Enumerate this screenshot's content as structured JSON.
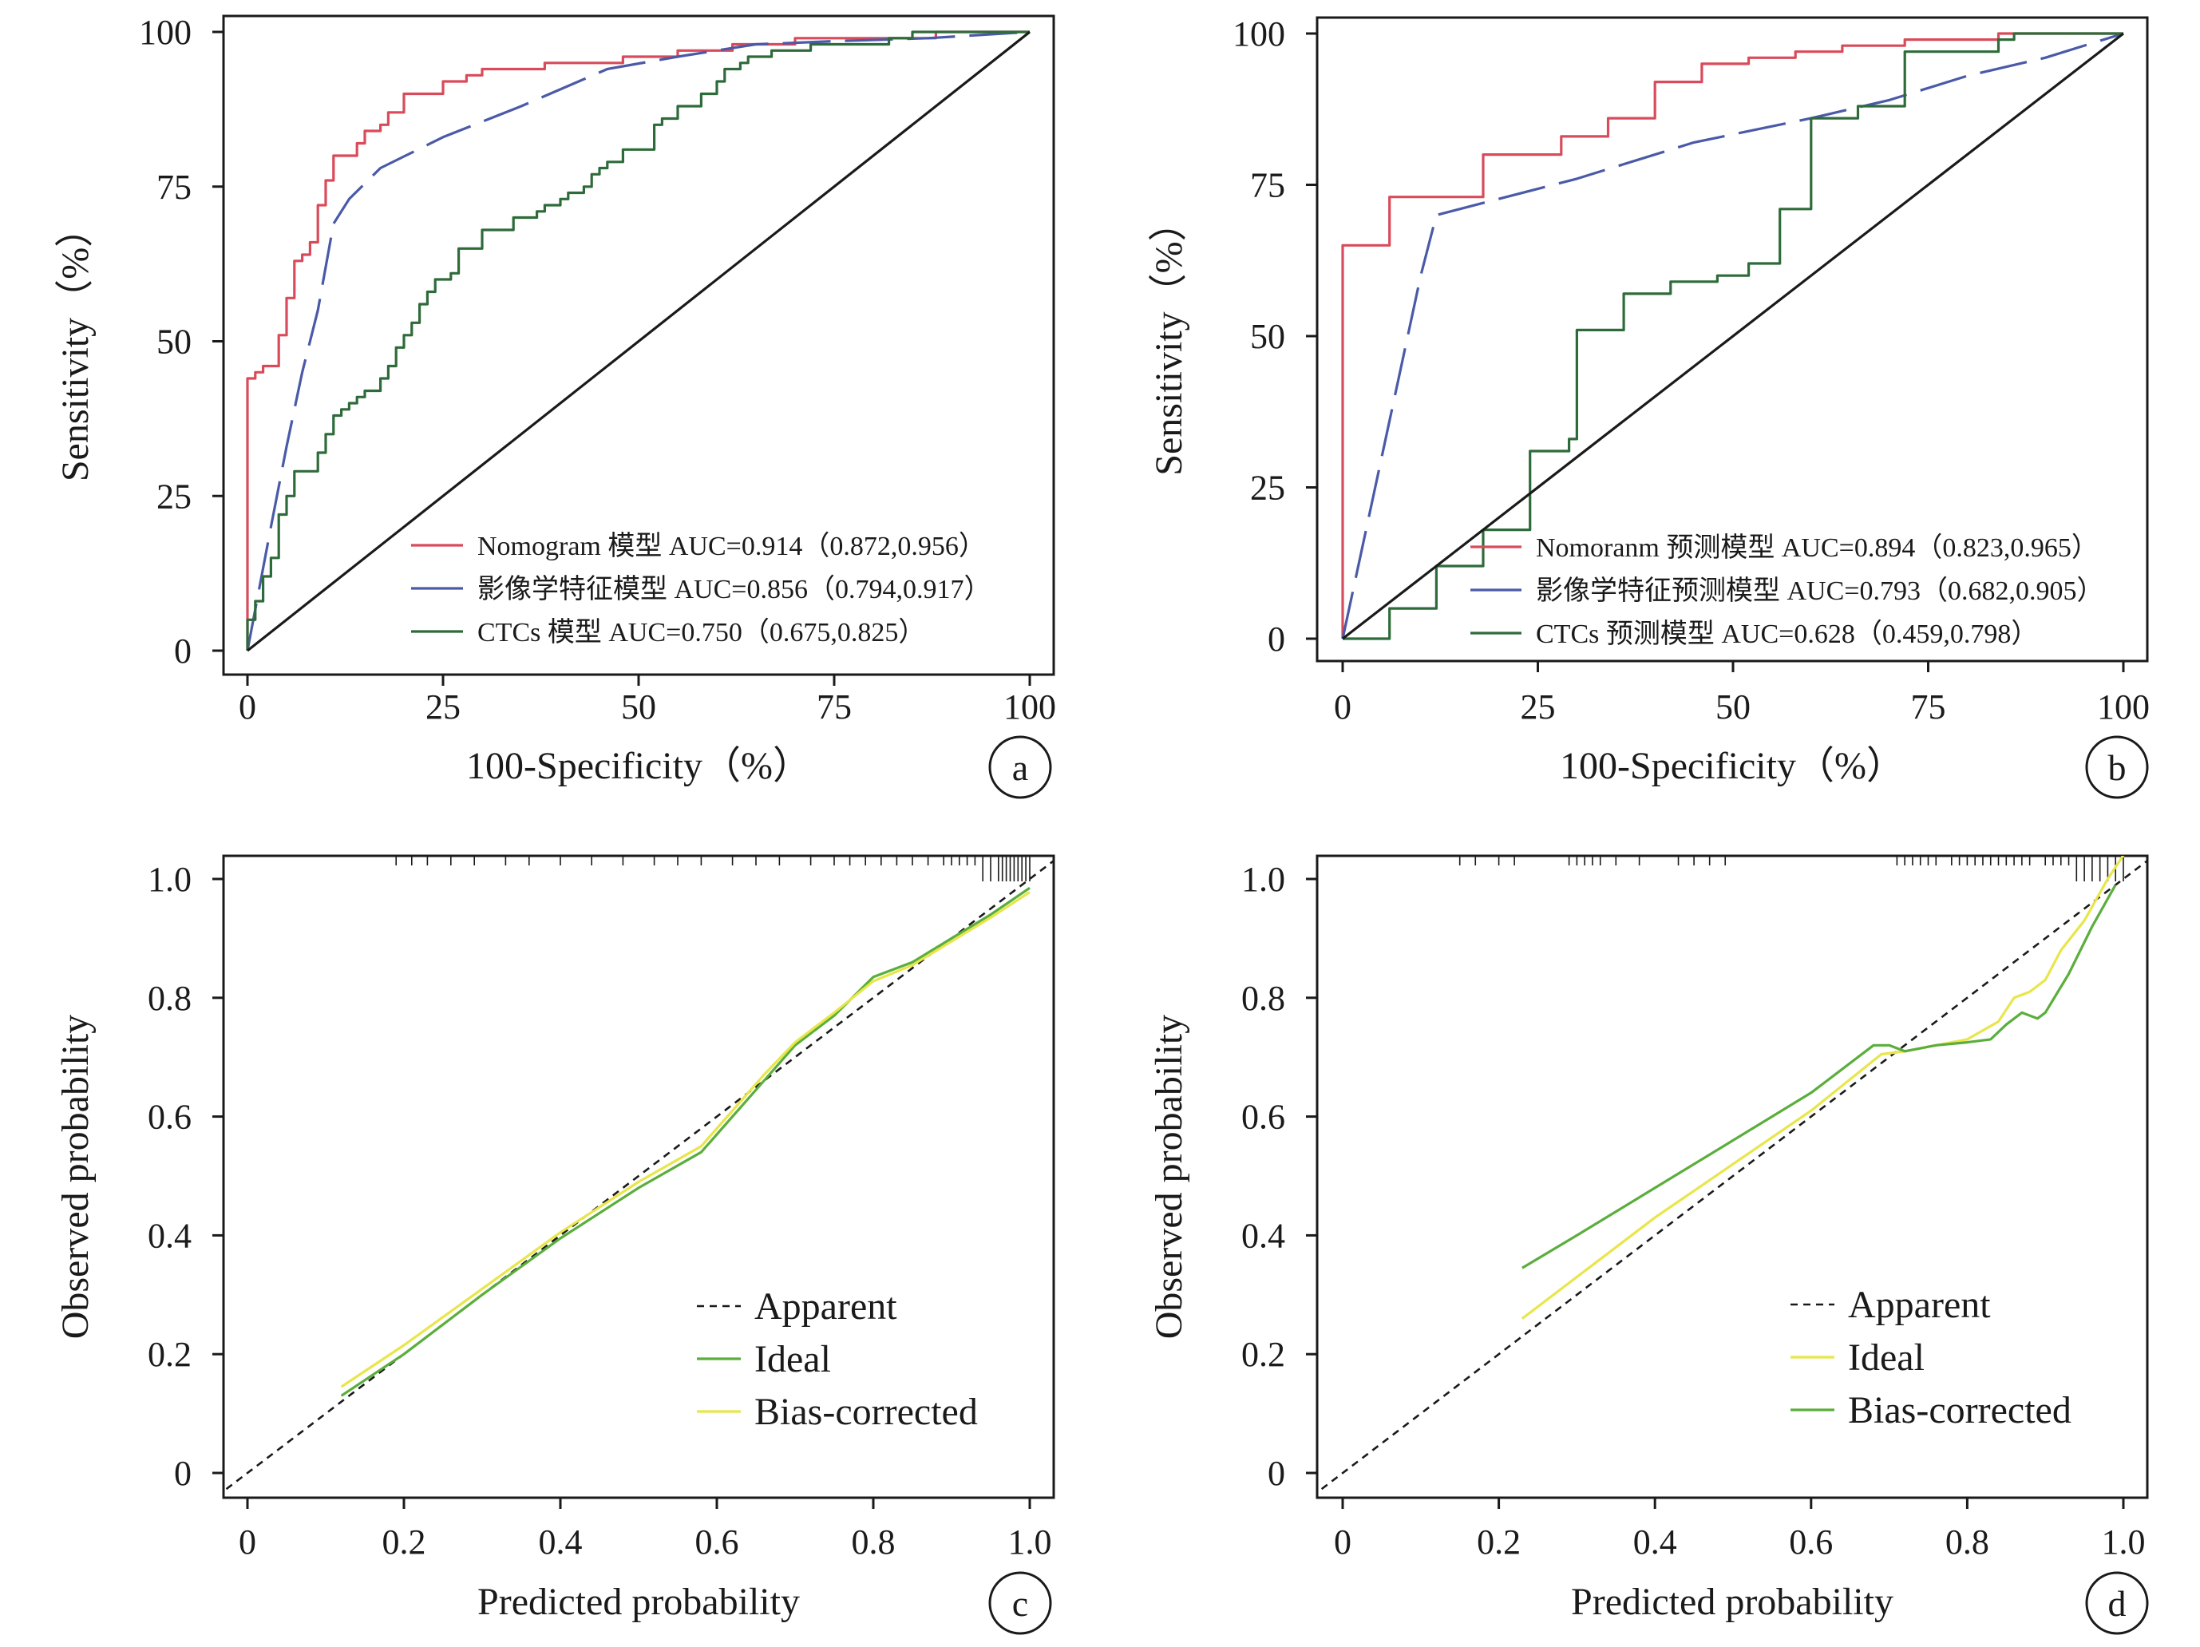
{
  "chart_data": [
    {
      "panel": "a",
      "type": "line",
      "xlabel": "100-Specificity（%）",
      "ylabel": "Sensitivity（%）",
      "xlim": [
        0,
        100
      ],
      "ylim": [
        0,
        100
      ],
      "xticks": [
        "0",
        "25",
        "50",
        "75",
        "100"
      ],
      "yticks": [
        "0",
        "25",
        "50",
        "75",
        "100"
      ],
      "legend_position": "bottom-right",
      "series": [
        {
          "name": "Nomogram 模型 AUC=0.914（0.872,0.956）",
          "color": "#d94b5a",
          "x": [
            0,
            0,
            1,
            1,
            2,
            2,
            4,
            4,
            5,
            5,
            6,
            6,
            7,
            7,
            8,
            8,
            9,
            9,
            10,
            10,
            11,
            11,
            13,
            13,
            14,
            14,
            15,
            15,
            17,
            17,
            18,
            18,
            20,
            20,
            23,
            23,
            25,
            25,
            28,
            28,
            30,
            30,
            33,
            33,
            38,
            38,
            44,
            44,
            48,
            48,
            55,
            55,
            62,
            62,
            70,
            70,
            80,
            80,
            88,
            88,
            100
          ],
          "y": [
            0,
            44,
            44,
            45,
            45,
            46,
            46,
            51,
            51,
            57,
            57,
            63,
            63,
            64,
            64,
            66,
            66,
            72,
            72,
            76,
            76,
            80,
            80,
            80,
            80,
            82,
            82,
            84,
            84,
            85,
            85,
            87,
            87,
            90,
            90,
            90,
            90,
            92,
            92,
            93,
            93,
            94,
            94,
            94,
            94,
            95,
            95,
            95,
            95,
            96,
            96,
            97,
            97,
            98,
            98,
            99,
            99,
            99,
            99,
            100,
            100
          ]
        },
        {
          "name": "影像学特征模型 AUC=0.856（0.794,0.917）",
          "color": "#4a5aa8",
          "x": [
            0,
            1.5,
            3,
            5,
            7,
            9,
            11,
            13,
            17,
            25,
            35,
            46,
            55,
            65,
            75,
            87,
            100
          ],
          "y": [
            0,
            10,
            20,
            33,
            45,
            55,
            69,
            73,
            78,
            83,
            88,
            94,
            96,
            98,
            98.5,
            99,
            100
          ]
        },
        {
          "name": "CTCs 模型 AUC=0.750（0.675,0.825）",
          "color": "#2e6b3a",
          "x": [
            0,
            0,
            1,
            1,
            2,
            2,
            3,
            3,
            4,
            4,
            5,
            5,
            6,
            6,
            9,
            9,
            10,
            10,
            11,
            11,
            12,
            12,
            13,
            13,
            14,
            14,
            15,
            15,
            17,
            17,
            18,
            18,
            19,
            19,
            20,
            20,
            21,
            21,
            22,
            22,
            23,
            23,
            24,
            24,
            26,
            26,
            27,
            27,
            30,
            30,
            34,
            34,
            36,
            36,
            37,
            37,
            38,
            38,
            40,
            40,
            41,
            41,
            43,
            43,
            44,
            44,
            45,
            45,
            46,
            46,
            48,
            48,
            52,
            52,
            53,
            53,
            55,
            55,
            58,
            58,
            60,
            60,
            61,
            61,
            63,
            63,
            64,
            64,
            67,
            67,
            72,
            72,
            78,
            78,
            82,
            82,
            85,
            85,
            88,
            88,
            100
          ],
          "y": [
            0,
            5,
            5,
            8,
            8,
            12,
            12,
            15,
            15,
            22,
            22,
            25,
            25,
            29,
            29,
            32,
            32,
            35,
            35,
            38,
            38,
            39,
            39,
            40,
            40,
            41,
            41,
            42,
            42,
            44,
            44,
            46,
            46,
            49,
            49,
            51,
            51,
            53,
            53,
            56,
            56,
            58,
            58,
            60,
            60,
            61,
            61,
            65,
            65,
            68,
            68,
            70,
            70,
            70,
            70,
            71,
            71,
            72,
            72,
            73,
            73,
            74,
            74,
            75,
            75,
            77,
            77,
            78,
            78,
            79,
            79,
            81,
            81,
            85,
            85,
            86,
            86,
            88,
            88,
            90,
            90,
            92,
            92,
            94,
            94,
            95,
            95,
            96,
            96,
            97,
            97,
            98,
            98,
            98,
            98,
            99,
            99,
            100,
            100,
            100,
            100
          ]
        },
        {
          "name": "",
          "color": "#1a1a1a",
          "x": [
            0,
            100
          ],
          "y": [
            0,
            100
          ]
        }
      ]
    },
    {
      "panel": "b",
      "type": "line",
      "xlabel": "100-Specificity（%）",
      "ylabel": "Sensitivity（%）",
      "xlim": [
        0,
        100
      ],
      "ylim": [
        0,
        100
      ],
      "xticks": [
        "0",
        "25",
        "50",
        "75",
        "100"
      ],
      "yticks": [
        "0",
        "25",
        "50",
        "75",
        "100"
      ],
      "legend_position": "bottom-right",
      "series": [
        {
          "name": "Nomoranm 预测模型 AUC=0.894（0.823,0.965）",
          "color": "#d94b5a",
          "x": [
            0,
            0,
            6,
            6,
            18,
            18,
            28,
            28,
            34,
            34,
            40,
            40,
            46,
            46,
            52,
            52,
            58,
            58,
            64,
            64,
            72,
            72,
            84,
            84,
            100
          ],
          "y": [
            0,
            65,
            65,
            73,
            73,
            80,
            80,
            83,
            83,
            86,
            86,
            92,
            92,
            95,
            95,
            96,
            96,
            97,
            97,
            98,
            98,
            99,
            99,
            100,
            100
          ]
        },
        {
          "name": "影像学特征预测模型 AUC=0.793（0.682,0.905）",
          "color": "#4a5aa8",
          "x": [
            0,
            5,
            10,
            12,
            18,
            30,
            45,
            60,
            70,
            80,
            90,
            100
          ],
          "y": [
            0,
            30,
            60,
            70,
            72,
            76,
            82,
            86,
            89,
            93,
            96,
            100
          ]
        },
        {
          "name": "CTCs 预测模型 AUC=0.628（0.459,0.798）",
          "color": "#2e6b3a",
          "x": [
            0,
            0,
            6,
            6,
            12,
            12,
            18,
            18,
            24,
            24,
            29,
            29,
            30,
            30,
            36,
            36,
            42,
            42,
            48,
            48,
            52,
            52,
            56,
            56,
            60,
            60,
            66,
            66,
            72,
            72,
            84,
            84,
            86,
            86,
            100
          ],
          "y": [
            0,
            0,
            0,
            5,
            5,
            12,
            12,
            18,
            18,
            31,
            31,
            33,
            33,
            51,
            51,
            57,
            57,
            59,
            59,
            60,
            60,
            62,
            62,
            71,
            71,
            86,
            86,
            88,
            88,
            97,
            97,
            99,
            99,
            100,
            100
          ]
        },
        {
          "name": "",
          "color": "#1a1a1a",
          "x": [
            0,
            100
          ],
          "y": [
            0,
            100
          ]
        }
      ]
    },
    {
      "panel": "c",
      "type": "line",
      "xlabel": "Predicted probability",
      "ylabel": "Observed probability",
      "xlim": [
        0,
        1
      ],
      "ylim": [
        0,
        1
      ],
      "xticks": [
        "0",
        "0.2",
        "0.4",
        "0.6",
        "0.8",
        "1.0"
      ],
      "yticks": [
        "0",
        "0.2",
        "0.4",
        "0.6",
        "0.8",
        "1.0"
      ],
      "legend_position": "bottom-right",
      "series": [
        {
          "name": "Apparent",
          "color": "#1a1a1a",
          "dash": true,
          "x": [
            -0.04,
            1.04
          ],
          "y": [
            -0.04,
            1.04
          ]
        },
        {
          "name": "Ideal",
          "color": "#5aae3c",
          "x": [
            0.12,
            0.2,
            0.3,
            0.4,
            0.5,
            0.58,
            0.62,
            0.66,
            0.7,
            0.75,
            0.8,
            0.85,
            0.9,
            0.95,
            1.0
          ],
          "y": [
            0.13,
            0.2,
            0.3,
            0.395,
            0.48,
            0.54,
            0.6,
            0.66,
            0.72,
            0.77,
            0.835,
            0.86,
            0.9,
            0.94,
            0.985
          ]
        },
        {
          "name": "Bias-corrected",
          "color": "#e8e64a",
          "x": [
            0.12,
            0.2,
            0.3,
            0.4,
            0.5,
            0.58,
            0.62,
            0.66,
            0.7,
            0.75,
            0.8,
            0.85,
            0.9,
            0.95,
            1.0
          ],
          "y": [
            0.145,
            0.215,
            0.31,
            0.405,
            0.49,
            0.55,
            0.61,
            0.67,
            0.725,
            0.775,
            0.828,
            0.855,
            0.895,
            0.935,
            0.978
          ]
        }
      ]
    },
    {
      "panel": "d",
      "type": "line",
      "xlabel": "Predicted probability",
      "ylabel": "Observed probability",
      "xlim": [
        0,
        1
      ],
      "ylim": [
        0,
        1
      ],
      "xticks": [
        "0",
        "0.2",
        "0.4",
        "0.6",
        "0.8",
        "1.0"
      ],
      "yticks": [
        "0",
        "0.2",
        "0.4",
        "0.6",
        "0.8",
        "1.0"
      ],
      "legend_position": "bottom-right",
      "series": [
        {
          "name": "Apparent",
          "color": "#1a1a1a",
          "dash": true,
          "x": [
            -0.04,
            1.04
          ],
          "y": [
            -0.04,
            1.04
          ]
        },
        {
          "name": "Ideal",
          "color": "#e8e64a",
          "x": [
            0.23,
            0.3,
            0.4,
            0.5,
            0.6,
            0.69,
            0.72,
            0.76,
            0.8,
            0.84,
            0.86,
            0.88,
            0.9,
            0.92,
            0.95,
            0.98,
            1.0
          ],
          "y": [
            0.26,
            0.33,
            0.43,
            0.52,
            0.61,
            0.705,
            0.71,
            0.72,
            0.73,
            0.76,
            0.8,
            0.81,
            0.83,
            0.88,
            0.93,
            1.0,
            1.04
          ]
        },
        {
          "name": "Bias-corrected",
          "color": "#5aae3c",
          "x": [
            0.23,
            0.3,
            0.4,
            0.5,
            0.6,
            0.68,
            0.7,
            0.72,
            0.76,
            0.8,
            0.83,
            0.85,
            0.87,
            0.89,
            0.9,
            0.93,
            0.96,
            0.99
          ],
          "y": [
            0.345,
            0.4,
            0.48,
            0.56,
            0.64,
            0.72,
            0.72,
            0.71,
            0.72,
            0.725,
            0.73,
            0.755,
            0.775,
            0.765,
            0.775,
            0.84,
            0.92,
            0.99
          ]
        }
      ]
    }
  ],
  "panel_labels": [
    "a",
    "b",
    "c",
    "d"
  ],
  "rug": {
    "c": [
      0.19,
      0.21,
      0.23,
      0.26,
      0.29,
      0.33,
      0.36,
      0.4,
      0.44,
      0.48,
      0.52,
      0.55,
      0.58,
      0.62,
      0.65,
      0.68,
      0.72,
      0.75,
      0.77,
      0.79,
      0.81,
      0.83,
      0.85,
      0.87,
      0.89,
      0.9,
      0.91,
      0.92,
      0.93,
      0.94,
      0.95,
      0.96,
      0.965,
      0.97,
      0.975,
      0.98,
      0.985,
      0.99,
      0.995,
      1.0
    ],
    "d": [
      0.15,
      0.17,
      0.2,
      0.22,
      0.29,
      0.3,
      0.31,
      0.32,
      0.33,
      0.35,
      0.38,
      0.43,
      0.45,
      0.47,
      0.49,
      0.71,
      0.72,
      0.73,
      0.74,
      0.75,
      0.76,
      0.78,
      0.79,
      0.8,
      0.81,
      0.82,
      0.83,
      0.84,
      0.85,
      0.86,
      0.87,
      0.88,
      0.9,
      0.91,
      0.92,
      0.93,
      0.94,
      0.95,
      0.96,
      0.97,
      0.98,
      0.99,
      1.0
    ]
  }
}
